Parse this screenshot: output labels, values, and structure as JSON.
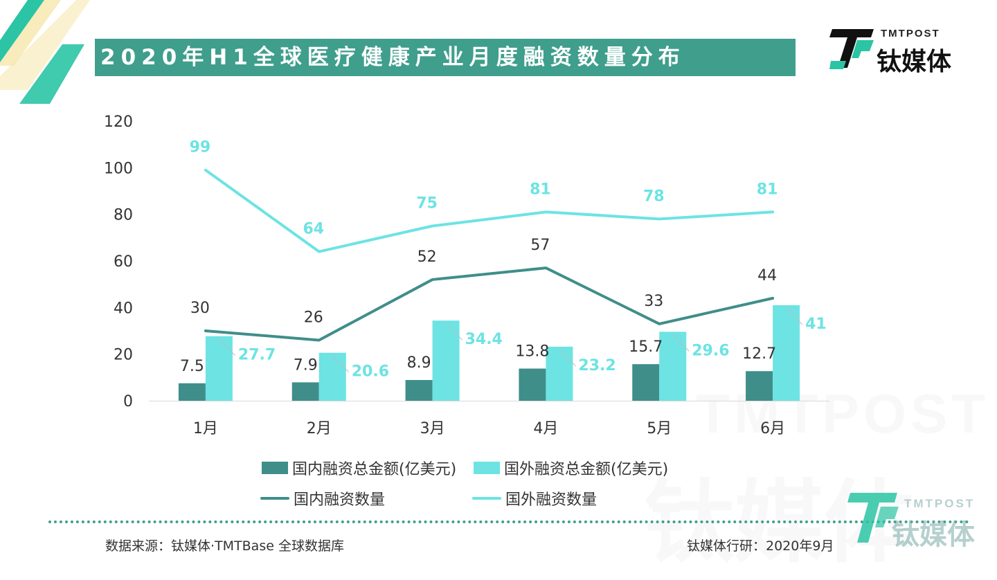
{
  "header": {
    "title": "2020年H1全球医疗健康产业月度融资数量分布"
  },
  "brand": {
    "en": "TMTPOST",
    "cn": "钛媒体"
  },
  "colors": {
    "domestic": "#3f8e8a",
    "foreign": "#6de3e3",
    "title_bg": "#3f9e8c",
    "deco_green": "#2bc4a5",
    "deco_yellow": "#f7e7b0"
  },
  "chart_data": {
    "type": "bar",
    "categories": [
      "1月",
      "2月",
      "3月",
      "4月",
      "5月",
      "6月"
    ],
    "ylim": [
      0,
      120
    ],
    "yticks": [
      "0",
      "20",
      "40",
      "60",
      "80",
      "100",
      "120"
    ],
    "bars": [
      {
        "name": "国内融资总金额(亿美元)",
        "values": [
          7.5,
          7.9,
          8.9,
          13.8,
          15.7,
          12.7
        ],
        "labels": [
          "7.5",
          "7.9",
          "8.9",
          "13.8",
          "15.7",
          "12.7"
        ]
      },
      {
        "name": "国外融资总金额(亿美元)",
        "values": [
          27.7,
          20.6,
          34.4,
          23.2,
          29.6,
          41
        ],
        "labels": [
          "27.7",
          "20.6",
          "34.4",
          "23.2",
          "29.6",
          "41"
        ]
      }
    ],
    "lines": [
      {
        "name": "国内融资数量",
        "values": [
          30,
          26,
          52,
          57,
          33,
          44
        ],
        "labels": [
          "30",
          "26",
          "52",
          "57",
          "33",
          "44"
        ]
      },
      {
        "name": "国外融资数量",
        "values": [
          99,
          64,
          75,
          81,
          78,
          81
        ],
        "labels": [
          "99",
          "64",
          "75",
          "81",
          "78",
          "81"
        ]
      }
    ],
    "grid": false,
    "legend": "bottom"
  },
  "footer": {
    "source": "数据来源：钛媒体·TMTBase 全球数据库",
    "credit": "钛媒体行研：2020年9月"
  }
}
